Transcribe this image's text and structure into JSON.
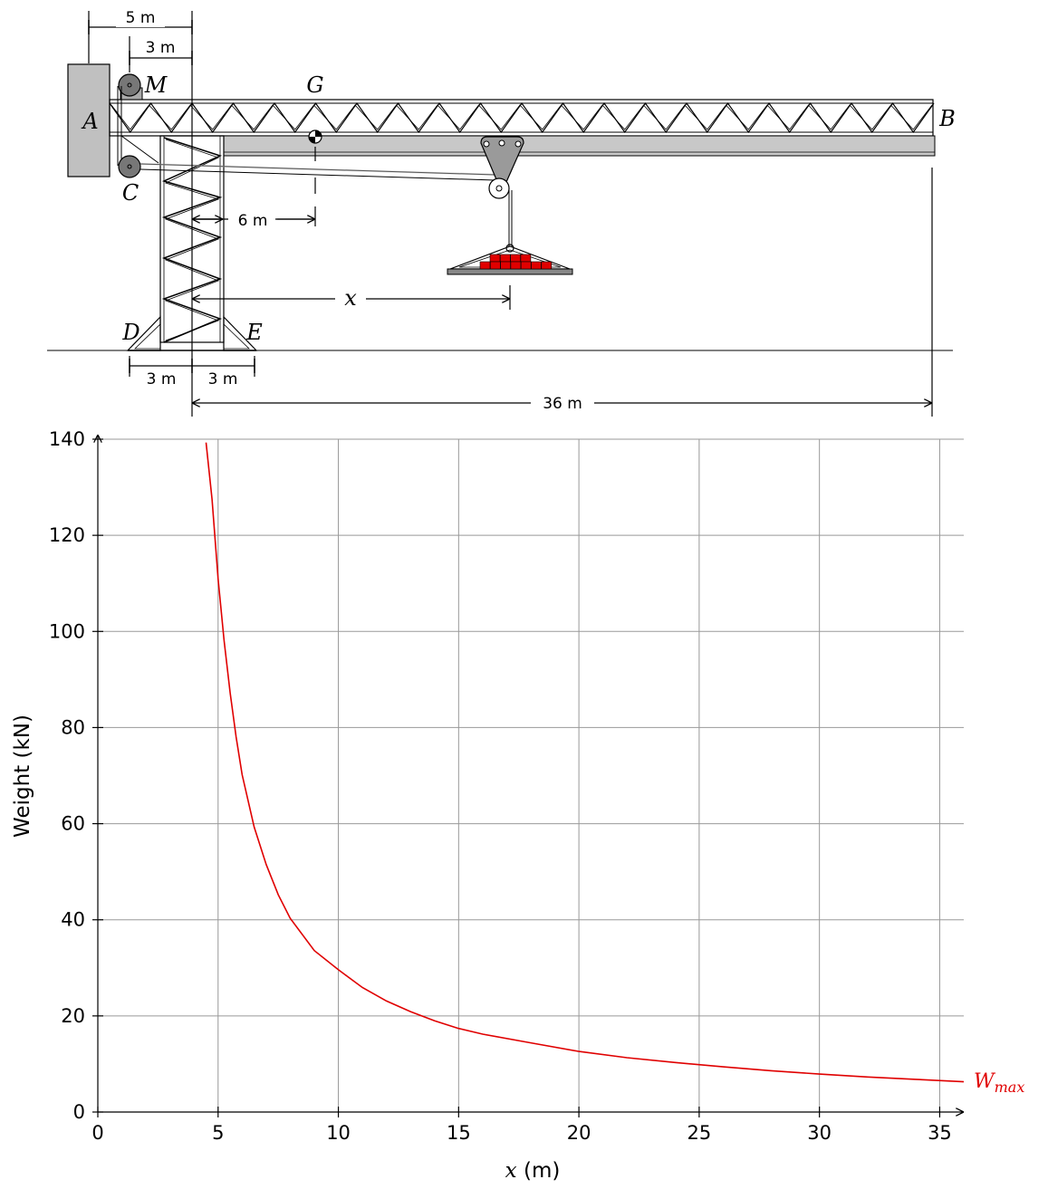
{
  "diagram": {
    "dimensions": {
      "dim_5m": "5 m",
      "dim_3m_top": "3 m",
      "dim_6m": "6 m",
      "dim_x": "x",
      "dim_3m_left": "3 m",
      "dim_3m_right": "3 m",
      "dim_36m": "36 m"
    },
    "points": {
      "A": "A",
      "B": "B",
      "C": "C",
      "D": "D",
      "E": "E",
      "G": "G",
      "M": "M"
    },
    "colors": {
      "structure": "#000000",
      "wall": "#c0c0c0",
      "rail": "#c8c8c8",
      "pulley": "#777777",
      "load": "#e00000",
      "pallet": "#888888"
    }
  },
  "chart_data": {
    "type": "line",
    "xlabel_var": "x",
    "xlabel_unit": " (m)",
    "ylabel": "Weight (kN)",
    "xlim": [
      0,
      36
    ],
    "ylim": [
      0,
      140
    ],
    "xticks": [
      "0",
      "5",
      "10",
      "15",
      "20",
      "25",
      "30",
      "35"
    ],
    "yticks": [
      "0",
      "20",
      "40",
      "60",
      "80",
      "100",
      "120",
      "140"
    ],
    "grid": true,
    "series": [
      {
        "name": "W",
        "name_sub": "max",
        "color": "#e00000",
        "x": [
          4.5,
          4.75,
          5,
          5.25,
          5.5,
          5.75,
          6,
          6.5,
          7,
          7.5,
          8,
          9,
          10,
          11,
          12,
          13,
          14,
          15,
          16,
          18,
          20,
          22,
          24,
          26,
          28,
          30,
          32,
          34,
          36
        ],
        "y": [
          139.3,
          127.5,
          110.9,
          98.1,
          87.2,
          78,
          70.2,
          59.3,
          51.5,
          45.2,
          40.3,
          33.6,
          29.6,
          25.9,
          23.1,
          20.9,
          19.0,
          17.4,
          16.2,
          14.4,
          12.6,
          11.3,
          10.3,
          9.4,
          8.6,
          7.9,
          7.3,
          6.8,
          6.3
        ]
      }
    ]
  }
}
